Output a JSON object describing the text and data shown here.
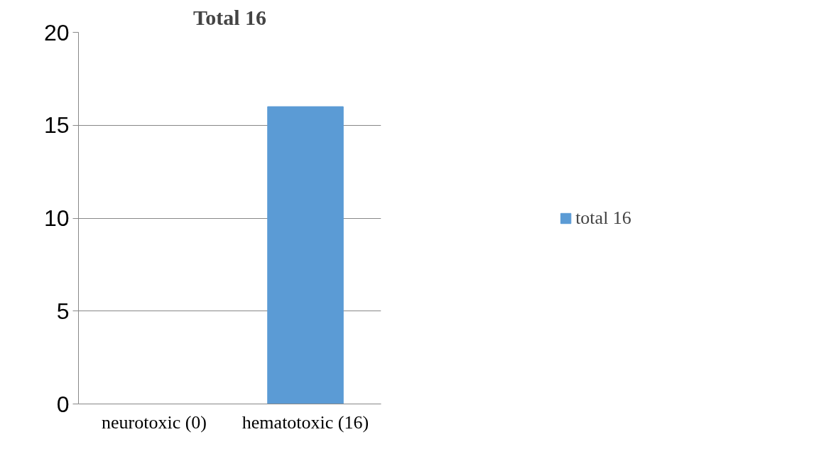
{
  "chart_data": {
    "type": "bar",
    "title": "Total 16",
    "categories": [
      "neurotoxic (0)",
      "hematotoxic (16)"
    ],
    "series": [
      {
        "name": "total 16",
        "color": "#5b9bd5",
        "values": [
          0,
          16
        ]
      }
    ],
    "ylim": [
      0,
      20
    ],
    "yticks": [
      0,
      5,
      10,
      15,
      20
    ],
    "grid": "y",
    "legend": "right"
  }
}
